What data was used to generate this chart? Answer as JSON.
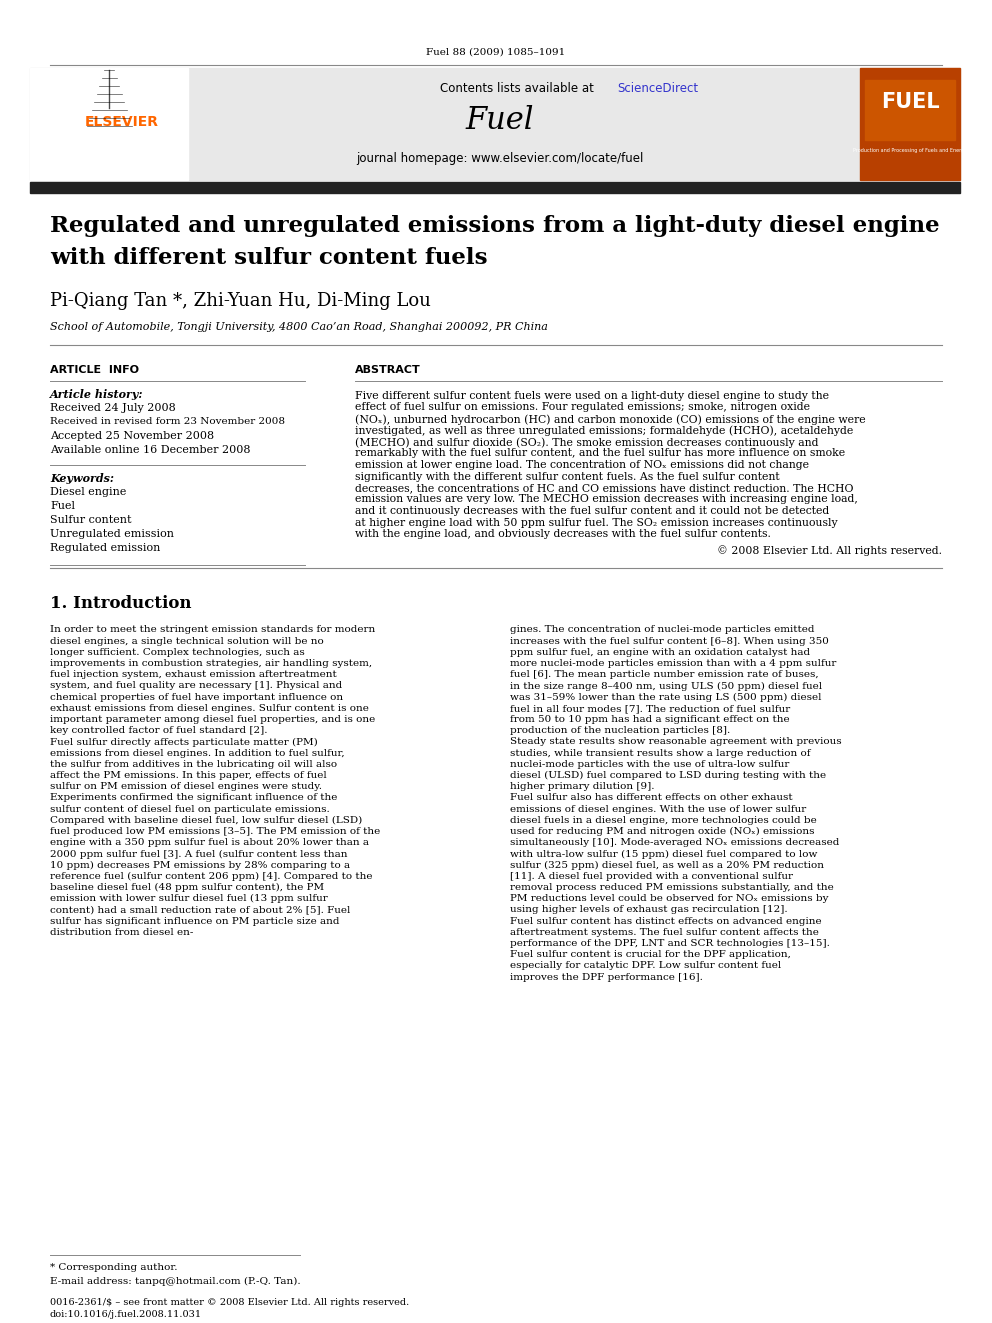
{
  "journal_ref": "Fuel 88 (2009) 1085–1091",
  "contents_text": "Contents lists available at",
  "sciencedirect_text": "ScienceDirect",
  "journal_name": "Fuel",
  "journal_homepage": "journal homepage: www.elsevier.com/locate/fuel",
  "title_line1": "Regulated and unregulated emissions from a light-duty diesel engine",
  "title_line2": "with different sulfur content fuels",
  "authors": "Pi-Qiang Tan *, Zhi-Yuan Hu, Di-Ming Lou",
  "affiliation": "School of Automobile, Tongji University, 4800 Cao’an Road, Shanghai 200092, PR China",
  "article_info_header": "ARTICLE  INFO",
  "abstract_header": "ABSTRACT",
  "article_history_label": "Article history:",
  "received": "Received 24 July 2008",
  "received_revised": "Received in revised form 23 November 2008",
  "accepted": "Accepted 25 November 2008",
  "available": "Available online 16 December 2008",
  "keywords_label": "Keywords:",
  "keywords": [
    "Diesel engine",
    "Fuel",
    "Sulfur content",
    "Unregulated emission",
    "Regulated emission"
  ],
  "abstract_text": "Five different sulfur content fuels were used on a light-duty diesel engine to study the effect of fuel sulfur on emissions. Four regulated emissions; smoke, nitrogen oxide (NOₓ), unburned hydrocarbon (HC) and carbon monoxide (CO) emissions of the engine were investigated, as well as three unregulated emissions; formaldehyde (HCHO), acetaldehyde (MECHO) and sulfur dioxide (SO₂). The smoke emission decreases continuously and remarkably with the fuel sulfur content, and the fuel sulfur has more influence on smoke emission at lower engine load. The concentration of NOₓ emissions did not change significantly with the different sulfur content fuels. As the fuel sulfur content decreases, the concentrations of HC and CO emissions have distinct reduction. The HCHO emission values are very low. The MECHO emission decreases with increasing engine load, and it continuously decreases with the fuel sulfur content and it could not be detected at higher engine load with 50 ppm sulfur fuel. The SO₂ emission increases continuously with the engine load, and obviously decreases with the fuel sulfur contents.",
  "copyright": "© 2008 Elsevier Ltd. All rights reserved.",
  "intro_header": "1. Introduction",
  "intro_col1": "    In order to meet the stringent emission standards for modern diesel engines, a single technical solution will be no longer sufficient. Complex technologies, such as improvements in combustion strategies, air handling system, fuel injection system, exhaust emission aftertreatment system, and fuel quality are necessary [1]. Physical and chemical properties of fuel have important influence on exhaust emissions from diesel engines. Sulfur content is one important parameter among diesel fuel properties, and is one key controlled factor of fuel standard [2].\n    Fuel sulfur directly affects particulate matter (PM) emissions from diesel engines. In addition to fuel sulfur, the sulfur from additives in the lubricating oil will also affect the PM emissions. In this paper, effects of fuel sulfur on PM emission of diesel engines were study. Experiments confirmed the significant influence of the sulfur content of diesel fuel on particulate emissions. Compared with baseline diesel fuel, low sulfur diesel (LSD) fuel produced low PM emissions [3–5]. The PM emission of the engine with a 350 ppm sulfur fuel is about 20% lower than a 2000 ppm sulfur fuel [3]. A fuel (sulfur content less than 10 ppm) decreases PM emissions by 28% comparing to a reference fuel (sulfur content 206 ppm) [4]. Compared to the baseline diesel fuel (48 ppm sulfur content), the PM emission with lower sulfur diesel fuel (13 ppm sulfur content) had a small reduction rate of about 2% [5]. Fuel sulfur has significant influence on PM particle size and distribution from diesel en-",
  "intro_col2": "gines. The concentration of nuclei-mode particles emitted increases with the fuel sulfur content [6–8]. When using 350 ppm sulfur fuel, an engine with an oxidation catalyst had more nuclei-mode particles emission than with a 4 ppm sulfur fuel [6]. The mean particle number emission rate of buses, in the size range 8–400 nm, using ULS (50 ppm) diesel fuel was 31–59% lower than the rate using LS (500 ppm) diesel fuel in all four modes [7]. The reduction of fuel sulfur from 50 to 10 ppm has had a significant effect on the production of the nucleation particles [8].\n    Steady state results show reasonable agreement with previous studies, while transient results show a large reduction of nuclei-mode particles with the use of ultra-low sulfur diesel (ULSD) fuel compared to LSD during testing with the higher primary dilution [9].\n    Fuel sulfur also has different effects on other exhaust emissions of diesel engines. With the use of lower sulfur diesel fuels in a diesel engine, more technologies could be used for reducing PM and nitrogen oxide (NOₓ) emissions simultaneously [10]. Mode-averaged NOₓ emissions decreased with ultra-low sulfur (15 ppm) diesel fuel compared to low sulfur (325 ppm) diesel fuel, as well as a 20% PM reduction [11]. A diesel fuel provided with a conventional sulfur removal process reduced PM emissions substantially, and the PM reductions level could be observed for NOₓ emissions by using higher levels of exhaust gas recirculation [12].\n    Fuel sulfur content has distinct effects on advanced engine aftertreatment systems. The fuel sulfur content affects the performance of the DPF, LNT and SCR technologies [13–15]. Fuel sulfur content is crucial for the DPF application, especially for catalytic DPF. Low sulfur content fuel improves the DPF performance [16].",
  "footnote1": "* Corresponding author.",
  "footnote2": "E-mail address: tanpq@hotmail.com (P.-Q. Tan).",
  "footer_left": "0016-2361/$ – see front matter © 2008 Elsevier Ltd. All rights reserved.",
  "footer_doi": "doi:10.1016/j.fuel.2008.11.031",
  "elsevier_color": "#FF6600",
  "link_color": "#3333CC",
  "header_bg": "#E8E8E8",
  "black_bar_color": "#222222"
}
